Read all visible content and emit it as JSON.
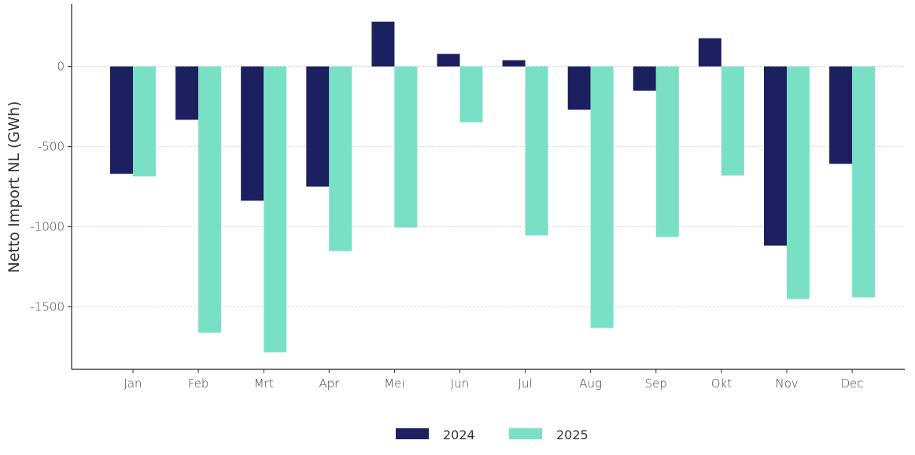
{
  "chart_data": {
    "type": "bar",
    "title": "",
    "xlabel": "",
    "ylabel": "Netto Import NL (GWh)",
    "categories": [
      "Jan",
      "Feb",
      "Mrt",
      "Apr",
      "Mei",
      "Jun",
      "Jul",
      "Aug",
      "Sep",
      "Okt",
      "Nov",
      "Dec"
    ],
    "series": [
      {
        "name": "2024",
        "color": "#1c2060",
        "values": [
          -670,
          -333,
          -838,
          -750,
          279,
          78,
          39,
          -270,
          -152,
          176,
          -1118,
          -608
        ]
      },
      {
        "name": "2025",
        "color": "#79e0c5",
        "values": [
          -686,
          -1662,
          -1784,
          -1152,
          -1005,
          -348,
          -1054,
          -1632,
          -1064,
          -681,
          -1451,
          -1441
        ]
      }
    ],
    "yticks": [
      0,
      -500,
      -1000,
      -1500
    ],
    "ytick_labels": [
      "0",
      "-500",
      "-1000",
      "-1500"
    ],
    "ylim": [
      -1890,
      390
    ],
    "grid": "horizontal major, dashed",
    "legend_position": "bottom"
  }
}
